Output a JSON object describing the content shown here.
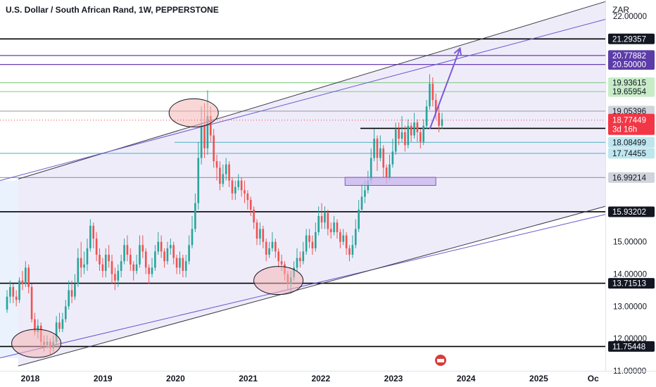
{
  "header": {
    "title": "U.S. Dollar / South African Rand, 1W, PEPPERSTONE",
    "currency": "ZAR"
  },
  "chart_data": {
    "type": "candlestick",
    "ylim": [
      11.0,
      22.5
    ],
    "xlim": [
      "2017-08",
      "2025-12"
    ],
    "x_tick_labels": [
      "2018",
      "2019",
      "2020",
      "2021",
      "2022",
      "2023",
      "2024",
      "2025",
      "Oc"
    ],
    "y_tick_labels": [
      {
        "label": "22.00000",
        "value": 22.0
      },
      {
        "label": "15.00000",
        "value": 15.0
      },
      {
        "label": "14.00000",
        "value": 14.0
      },
      {
        "label": "13.00000",
        "value": 13.0
      },
      {
        "label": "12.00000",
        "value": 12.0
      },
      {
        "label": "11.00000",
        "value": 11.0
      }
    ],
    "price_levels": [
      {
        "label": "21.29357",
        "value": 21.29357,
        "color": "#000000",
        "label_bg": "#131722",
        "label_fg": "#ffffff"
      },
      {
        "label": "20.77882",
        "value": 20.77882,
        "color": "#6a3ab8",
        "label_bg": "#5b3ca8",
        "label_fg": "#ffffff"
      },
      {
        "label": "20.50000",
        "value": 20.5,
        "color": "#6a3ab8",
        "label_bg": "#5b3ca8",
        "label_fg": "#ffffff"
      },
      {
        "label": "19.93615",
        "value": 19.93615,
        "color": "#8fcf8f",
        "label_bg": "#c8ecc8",
        "label_fg": "#131722"
      },
      {
        "label": "19.65954",
        "value": 19.65954,
        "color": "#8fcf8f",
        "label_bg": "#c8ecc8",
        "label_fg": "#131722"
      },
      {
        "label": "19.05396",
        "value": 19.05396,
        "color": "#a0a0a8",
        "label_bg": "#d1d4dc",
        "label_fg": "#131722"
      },
      {
        "label": "18.51878",
        "value": 18.51878,
        "color": "#000000",
        "label_bg": "#131722",
        "label_fg": "#ffffff"
      },
      {
        "label": "18.08499",
        "value": 18.08499,
        "color": "#5fb8c8",
        "label_bg": "#bfe6ee",
        "label_fg": "#131722"
      },
      {
        "label": "17.74455",
        "value": 17.74455,
        "color": "#5fb8c8",
        "label_bg": "#bfe6ee",
        "label_fg": "#131722"
      },
      {
        "label": "16.99214",
        "value": 16.99214,
        "color": "#a0a0a8",
        "label_bg": "#d1d4dc",
        "label_fg": "#131722"
      },
      {
        "label": "15.93202",
        "value": 15.93202,
        "color": "#000000",
        "label_bg": "#131722",
        "label_fg": "#ffffff"
      },
      {
        "label": "13.71513",
        "value": 13.71513,
        "color": "#000000",
        "label_bg": "#131722",
        "label_fg": "#ffffff"
      },
      {
        "label": "11.75448",
        "value": 11.75448,
        "color": "#000000",
        "label_bg": "#131722",
        "label_fg": "#ffffff"
      }
    ],
    "current_price": {
      "label": "18.77449",
      "countdown": "3d 16h",
      "value": 18.77449,
      "color": "#f23645"
    },
    "colors": {
      "up": "#26a69a",
      "down": "#ef5350",
      "channel": "#6a5acd",
      "channel_fill": "#e8e4f8"
    },
    "candles": [
      [
        12.9,
        13.3,
        13.5,
        12.8
      ],
      [
        13.3,
        13.6,
        13.8,
        13.1
      ],
      [
        13.6,
        13.3,
        13.7,
        13.1
      ],
      [
        13.3,
        13.2,
        13.5,
        13.0
      ],
      [
        13.2,
        13.8,
        13.9,
        13.1
      ],
      [
        13.8,
        13.7,
        14.1,
        13.5
      ],
      [
        13.7,
        14.2,
        14.4,
        13.6
      ],
      [
        14.2,
        13.6,
        14.3,
        13.4
      ],
      [
        13.6,
        12.6,
        13.7,
        12.5
      ],
      [
        12.6,
        12.2,
        12.8,
        12.1
      ],
      [
        12.2,
        12.4,
        12.6,
        12.0
      ],
      [
        12.4,
        11.9,
        12.5,
        11.7
      ],
      [
        11.9,
        11.8,
        12.1,
        11.6
      ],
      [
        11.8,
        11.9,
        12.1,
        11.7
      ],
      [
        11.9,
        11.7,
        12.0,
        11.5
      ],
      [
        11.7,
        11.9,
        12.1,
        11.6
      ],
      [
        11.9,
        12.5,
        12.7,
        11.8
      ],
      [
        12.5,
        12.3,
        12.8,
        12.2
      ],
      [
        12.3,
        12.6,
        12.8,
        12.2
      ],
      [
        12.6,
        13.0,
        13.2,
        12.5
      ],
      [
        13.0,
        13.5,
        13.8,
        12.9
      ],
      [
        13.5,
        13.3,
        13.8,
        13.1
      ],
      [
        13.3,
        13.7,
        14.0,
        13.2
      ],
      [
        13.7,
        14.5,
        14.8,
        13.6
      ],
      [
        14.5,
        14.2,
        15.0,
        13.9
      ],
      [
        14.2,
        14.3,
        14.7,
        14.0
      ],
      [
        14.3,
        14.8,
        15.1,
        14.1
      ],
      [
        14.8,
        15.5,
        15.7,
        14.7
      ],
      [
        15.5,
        15.1,
        15.6,
        14.8
      ],
      [
        15.1,
        14.6,
        15.3,
        14.4
      ],
      [
        14.6,
        14.3,
        14.8,
        14.1
      ],
      [
        14.3,
        14.1,
        14.5,
        13.9
      ],
      [
        14.1,
        14.6,
        14.8,
        13.9
      ],
      [
        14.6,
        14.4,
        14.9,
        14.2
      ],
      [
        14.4,
        14.0,
        14.6,
        13.7
      ],
      [
        14.0,
        13.8,
        14.2,
        13.5
      ],
      [
        13.8,
        14.1,
        14.3,
        13.6
      ],
      [
        14.1,
        14.4,
        14.6,
        13.9
      ],
      [
        14.4,
        14.9,
        15.1,
        14.3
      ],
      [
        14.9,
        14.6,
        15.2,
        14.4
      ],
      [
        14.6,
        14.3,
        14.8,
        14.1
      ],
      [
        14.3,
        14.1,
        14.4,
        13.8
      ],
      [
        14.1,
        14.3,
        14.6,
        14.0
      ],
      [
        14.3,
        14.9,
        15.2,
        14.2
      ],
      [
        14.9,
        14.7,
        15.2,
        14.5
      ],
      [
        14.7,
        14.2,
        14.8,
        14.0
      ],
      [
        14.2,
        14.0,
        14.3,
        13.7
      ],
      [
        14.0,
        14.2,
        14.5,
        13.9
      ],
      [
        14.2,
        14.7,
        14.9,
        14.1
      ],
      [
        14.7,
        15.0,
        15.3,
        14.6
      ],
      [
        15.0,
        14.7,
        15.2,
        14.5
      ],
      [
        14.7,
        14.4,
        14.8,
        14.2
      ],
      [
        14.4,
        14.8,
        15.0,
        14.3
      ],
      [
        14.8,
        14.9,
        15.1,
        14.6
      ],
      [
        14.9,
        14.5,
        15.0,
        14.3
      ],
      [
        14.5,
        14.2,
        14.6,
        14.0
      ],
      [
        14.2,
        14.5,
        14.7,
        14.0
      ],
      [
        14.5,
        14.1,
        14.6,
        13.9
      ],
      [
        14.1,
        14.4,
        14.6,
        13.9
      ],
      [
        14.4,
        14.9,
        15.2,
        14.3
      ],
      [
        14.9,
        15.4,
        15.8,
        14.8
      ],
      [
        15.4,
        16.2,
        16.5,
        15.3
      ],
      [
        16.2,
        17.6,
        18.1,
        16.0
      ],
      [
        17.6,
        18.6,
        19.2,
        17.4
      ],
      [
        18.6,
        17.9,
        19.3,
        17.6
      ],
      [
        17.9,
        18.9,
        19.7,
        17.7
      ],
      [
        18.9,
        18.3,
        19.2,
        18.1
      ],
      [
        18.3,
        17.5,
        18.5,
        17.3
      ],
      [
        17.5,
        17.3,
        17.7,
        16.9
      ],
      [
        17.3,
        16.8,
        17.5,
        16.6
      ],
      [
        16.8,
        17.1,
        17.4,
        16.7
      ],
      [
        17.1,
        17.4,
        17.6,
        16.9
      ],
      [
        17.4,
        16.9,
        17.5,
        16.7
      ],
      [
        16.9,
        16.5,
        17.0,
        16.3
      ],
      [
        16.5,
        16.7,
        16.9,
        16.3
      ],
      [
        16.7,
        16.9,
        17.1,
        16.6
      ],
      [
        16.9,
        16.6,
        17.0,
        16.4
      ],
      [
        16.6,
        16.5,
        16.9,
        16.2
      ],
      [
        16.5,
        16.3,
        16.6,
        16.0
      ],
      [
        16.3,
        16.0,
        16.4,
        15.8
      ],
      [
        16.0,
        15.6,
        16.1,
        15.4
      ],
      [
        15.6,
        15.1,
        15.7,
        14.9
      ],
      [
        15.1,
        15.4,
        15.6,
        14.9
      ],
      [
        15.4,
        15.0,
        15.5,
        14.8
      ],
      [
        15.0,
        14.6,
        15.1,
        14.4
      ],
      [
        14.6,
        14.8,
        15.0,
        14.5
      ],
      [
        14.8,
        15.0,
        15.3,
        14.7
      ],
      [
        15.0,
        14.7,
        15.1,
        14.5
      ],
      [
        14.7,
        14.4,
        14.8,
        14.2
      ],
      [
        14.4,
        14.3,
        14.6,
        14.1
      ],
      [
        14.3,
        14.0,
        14.4,
        13.8
      ],
      [
        14.0,
        13.7,
        14.1,
        13.5
      ],
      [
        13.7,
        13.9,
        14.1,
        13.4
      ],
      [
        13.9,
        14.2,
        14.4,
        13.8
      ],
      [
        14.2,
        14.5,
        14.8,
        14.1
      ],
      [
        14.5,
        14.4,
        14.7,
        14.2
      ],
      [
        14.4,
        14.7,
        15.0,
        14.3
      ],
      [
        14.7,
        15.2,
        15.4,
        14.6
      ],
      [
        15.2,
        15.0,
        15.4,
        14.8
      ],
      [
        15.0,
        14.8,
        15.2,
        14.6
      ],
      [
        14.8,
        15.3,
        15.6,
        14.7
      ],
      [
        15.3,
        15.8,
        16.1,
        15.2
      ],
      [
        15.8,
        15.6,
        16.2,
        15.4
      ],
      [
        15.6,
        15.9,
        16.1,
        15.4
      ],
      [
        15.9,
        15.4,
        16.0,
        15.2
      ],
      [
        15.4,
        15.3,
        15.6,
        15.1
      ],
      [
        15.3,
        15.6,
        15.8,
        15.2
      ],
      [
        15.6,
        15.3,
        15.7,
        15.1
      ],
      [
        15.3,
        15.0,
        15.4,
        14.8
      ],
      [
        15.0,
        15.2,
        15.4,
        14.9
      ],
      [
        15.2,
        14.8,
        15.3,
        14.6
      ],
      [
        14.8,
        14.6,
        14.9,
        14.4
      ],
      [
        14.6,
        14.9,
        15.2,
        14.5
      ],
      [
        14.9,
        15.4,
        15.7,
        14.8
      ],
      [
        15.4,
        16.0,
        16.3,
        15.3
      ],
      [
        16.0,
        16.4,
        16.8,
        15.9
      ],
      [
        16.4,
        16.6,
        16.9,
        16.2
      ],
      [
        16.6,
        16.9,
        17.2,
        16.5
      ],
      [
        16.9,
        17.6,
        17.9,
        16.8
      ],
      [
        17.6,
        18.2,
        18.5,
        17.5
      ],
      [
        18.2,
        17.6,
        18.3,
        17.2
      ],
      [
        17.6,
        17.9,
        18.3,
        17.5
      ],
      [
        17.9,
        17.3,
        18.0,
        17.0
      ],
      [
        17.3,
        17.0,
        17.4,
        16.8
      ],
      [
        17.0,
        17.4,
        17.7,
        16.9
      ],
      [
        17.4,
        17.8,
        18.2,
        17.3
      ],
      [
        17.8,
        18.5,
        18.7,
        17.7
      ],
      [
        18.5,
        18.2,
        18.7,
        18.0
      ],
      [
        18.2,
        18.4,
        18.9,
        18.1
      ],
      [
        18.4,
        18.0,
        18.6,
        17.8
      ],
      [
        18.0,
        18.6,
        18.8,
        17.9
      ],
      [
        18.6,
        18.3,
        18.7,
        18.1
      ],
      [
        18.3,
        18.7,
        19.0,
        18.2
      ],
      [
        18.7,
        18.4,
        18.8,
        18.1
      ],
      [
        18.4,
        18.1,
        18.5,
        17.9
      ],
      [
        18.1,
        18.6,
        18.8,
        18.0
      ],
      [
        18.6,
        19.2,
        19.4,
        18.5
      ],
      [
        19.2,
        19.9,
        20.2,
        19.1
      ],
      [
        19.9,
        19.4,
        20.1,
        19.2
      ],
      [
        19.4,
        19.0,
        19.6,
        18.8
      ],
      [
        19.0,
        18.6,
        19.3,
        18.4
      ],
      [
        18.6,
        18.8,
        19.0,
        18.5
      ]
    ],
    "channel": [
      {
        "name": "upper",
        "x0": "2017-11",
        "y0": 16.95,
        "x1": "2025-12",
        "y1": 22.45
      },
      {
        "name": "mid",
        "x0": "2017-08",
        "y0": 16.9,
        "x1": "2025-12",
        "y1": 21.9
      },
      {
        "name": "mid-low",
        "x0": "2017-08",
        "y0": 11.4,
        "x1": "2025-12",
        "y1": 15.85
      },
      {
        "name": "lower",
        "x0": "2017-11",
        "y0": 11.15,
        "x1": "2025-12",
        "y1": 16.1
      }
    ],
    "annotations": [
      {
        "type": "ellipse",
        "x": "2018-02",
        "y": 11.85
      },
      {
        "type": "ellipse",
        "x": "2020-04",
        "y": 19.0
      },
      {
        "type": "ellipse",
        "x": "2021-06",
        "y": 13.8
      },
      {
        "type": "rect",
        "x0": "2022-05",
        "x1": "2023-08",
        "y0": 16.75,
        "y1": 17.0
      },
      {
        "type": "arrow",
        "x0": "2023-07",
        "y0": 18.5,
        "x1": "2023-12",
        "y1": 21.0
      }
    ]
  }
}
